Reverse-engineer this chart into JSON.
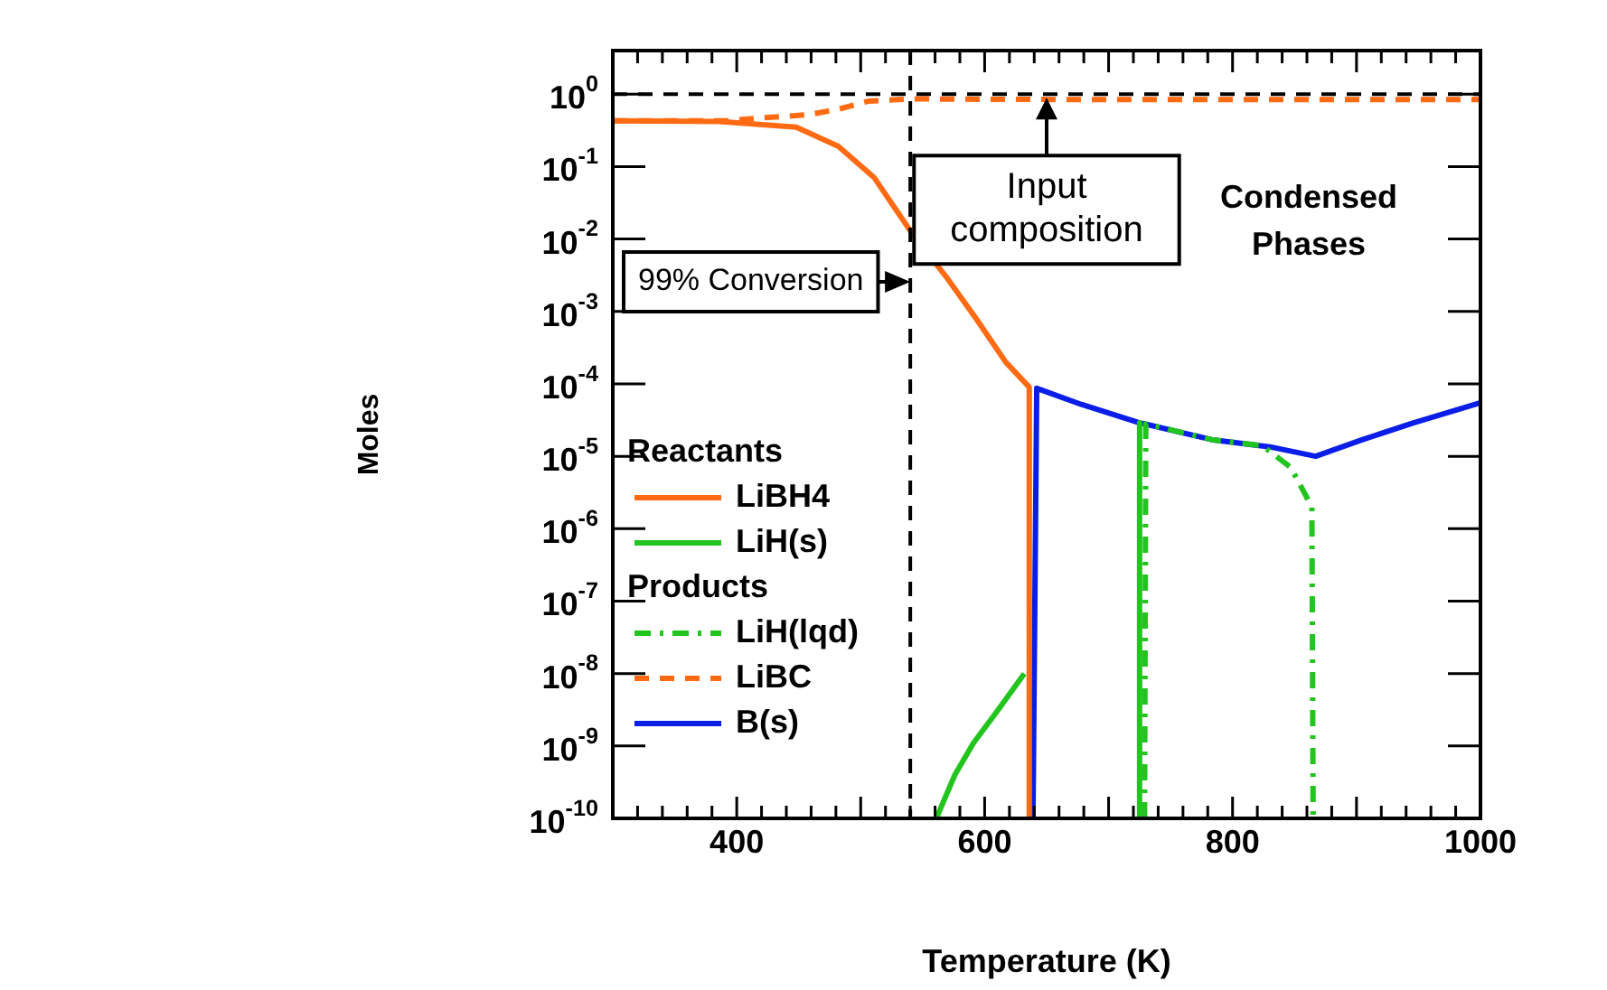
{
  "chart_data": {
    "type": "line",
    "xlabel": "Temperature (K)",
    "ylabel": "Moles",
    "log": "y",
    "xlim": [
      300,
      1000
    ],
    "xticks": [
      {
        "value": 300,
        "label": null
      },
      {
        "value": 320,
        "label": null
      },
      {
        "value": 340,
        "label": null
      },
      {
        "value": 360,
        "label": null
      },
      {
        "value": 380,
        "label": null
      },
      400,
      {
        "value": 420,
        "label": null
      },
      {
        "value": 440,
        "label": null
      },
      {
        "value": 460,
        "label": null
      },
      {
        "value": 480,
        "label": null
      },
      {
        "value": 500,
        "label": null
      },
      {
        "value": 520,
        "label": null
      },
      {
        "value": 540,
        "label": null
      },
      {
        "value": 560,
        "label": null
      },
      {
        "value": 580,
        "label": null
      },
      600,
      {
        "value": 620,
        "label": null
      },
      {
        "value": 640,
        "label": null
      },
      {
        "value": 660,
        "label": null
      },
      {
        "value": 680,
        "label": null
      },
      {
        "value": 700,
        "label": null
      },
      {
        "value": 720,
        "label": null
      },
      {
        "value": 740,
        "label": null
      },
      {
        "value": 760,
        "label": null
      },
      {
        "value": 780,
        "label": null
      },
      800,
      {
        "value": 820,
        "label": null
      },
      {
        "value": 840,
        "label": null
      },
      {
        "value": 860,
        "label": null
      },
      {
        "value": 880,
        "label": null
      },
      {
        "value": 900,
        "label": null
      },
      {
        "value": 920,
        "label": null
      },
      {
        "value": 940,
        "label": null
      },
      {
        "value": 960,
        "label": null
      },
      {
        "value": 980,
        "label": null
      },
      1000
    ],
    "ylim": [
      1e-10,
      4
    ],
    "yticks": [
      {
        "value": 1e-10,
        "label": "10$^{-10}$"
      },
      {
        "value": 1e-09,
        "label": "10$^{-9}$"
      },
      {
        "value": 1e-08,
        "label": "10$^{-8}$"
      },
      {
        "value": 1e-07,
        "label": "10$^{-7}$"
      },
      {
        "value": 1e-06,
        "label": "10$^{-6}$"
      },
      {
        "value": 1e-05,
        "label": "10$^{-5}$"
      },
      {
        "value": 0.0001,
        "label": "10$^{-4}$"
      },
      {
        "value": 0.001,
        "label": "10$^{-3}$"
      },
      {
        "value": 0.01,
        "label": "10$^{-2}$"
      },
      {
        "value": 0.1,
        "label": "10$^{-1}$"
      },
      {
        "value": 1,
        "label": "10$^{0}$"
      }
    ],
    "legend": "bottom left",
    "series": [
      {
        "name": "LiBH4",
        "color": "#ff6a13",
        "line_style": "solid",
        "x": [
          300,
          386,
          448,
          482,
          511,
          540,
          569,
          593,
          617,
          636,
          636
        ],
        "values": [
          0.43,
          0.42,
          0.35,
          0.19,
          0.07,
          0.013,
          0.003,
          0.0008,
          0.0002,
          9e-05,
          1e-10
        ]
      },
      {
        "name": "LiH(s)",
        "color": "#22c41e",
        "line_style": "solid",
        "x": [
          561,
          576,
          591,
          610,
          632,
          634,
          725,
          725
        ],
        "values": [
          1e-10,
          4e-10,
          1.1e-09,
          3e-09,
          1e-08,
          null,
          2.9e-05,
          1e-10
        ]
      },
      {
        "name": "LiH(lqd)",
        "color": "#22c41e",
        "line_style": "dashdot",
        "x": [
          729,
          730,
          783,
          824,
          847,
          864,
          865
        ],
        "values": [
          1e-10,
          2.8e-05,
          1.7e-05,
          1.4e-05,
          7e-06,
          2e-06,
          1e-10
        ]
      },
      {
        "name": "LiBC",
        "color": "#ff6a13",
        "line_style": "dashed",
        "x": [
          300,
          391,
          419,
          458,
          482,
          506,
          540,
          600,
          700,
          800,
          900,
          1000
        ],
        "values": [
          0.43,
          0.43,
          0.47,
          0.52,
          0.62,
          0.8,
          0.86,
          0.85,
          0.84,
          0.84,
          0.84,
          0.84
        ]
      },
      {
        "name": "B(s)",
        "color": "#0a1ee8",
        "line_style": "solid",
        "x": [
          639,
          642,
          678,
          725,
          783,
          830,
          867,
          905,
          946,
          1000
        ],
        "values": [
          1e-10,
          8.7e-05,
          5.2e-05,
          2.9e-05,
          1.7e-05,
          1.35e-05,
          1e-05,
          1.7e-05,
          2.9e-05,
          5.5e-05
        ]
      }
    ],
    "ref_lines": [
      {
        "axis": "y",
        "value": 1,
        "label": "Input composition",
        "color": "#000000",
        "line_style": "dashed"
      },
      {
        "axis": "x",
        "value": 540,
        "label": "99% Conversion",
        "color": "#000000",
        "line_style": "dashed"
      }
    ],
    "annotations": [
      "Condensed Phases",
      "Reactants",
      "Products"
    ]
  }
}
